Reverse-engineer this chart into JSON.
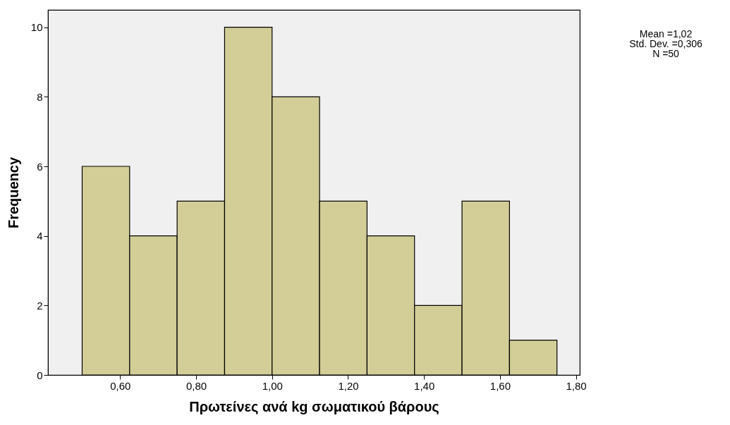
{
  "chart_data": {
    "type": "histogram",
    "xlabel": "Πρωτείνες ανά kg σωματικού βάρους",
    "ylabel": "Frequency",
    "bins": [
      0.5,
      0.625,
      0.75,
      0.875,
      1.0,
      1.125,
      1.25,
      1.375,
      1.5,
      1.625,
      1.75
    ],
    "values": [
      6,
      4,
      5,
      10,
      8,
      5,
      4,
      2,
      5,
      1
    ],
    "color": "#d3ce97",
    "xlim": [
      0.41,
      1.81
    ],
    "xticks": [
      {
        "value": 0.6,
        "label": "0,60"
      },
      {
        "value": 0.8,
        "label": "0,80"
      },
      {
        "value": 1.0,
        "label": "1,00"
      },
      {
        "value": 1.2,
        "label": "1,20"
      },
      {
        "value": 1.4,
        "label": "1,40"
      },
      {
        "value": 1.6,
        "label": "1,60"
      },
      {
        "value": 1.8,
        "label": "1,80"
      }
    ],
    "ylim": [
      0,
      10.5
    ],
    "yticks": [
      0,
      2,
      4,
      6,
      8,
      10
    ],
    "annotations": [
      "Mean =1,02",
      "Std. Dev. =0,306",
      "N =50"
    ],
    "grid": false
  }
}
